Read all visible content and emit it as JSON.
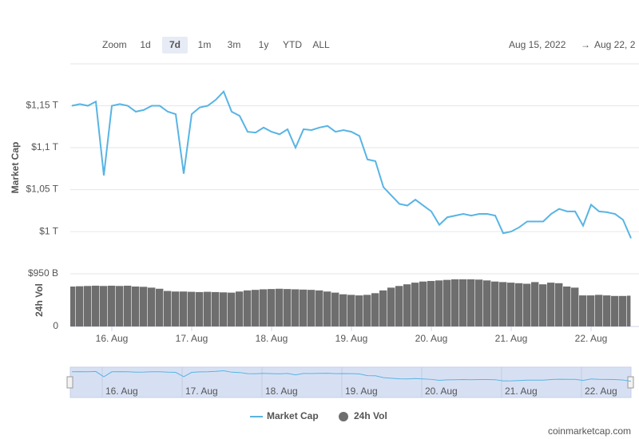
{
  "range_selector": {
    "label": "Zoom",
    "buttons": [
      "1d",
      "7d",
      "1m",
      "3m",
      "1y",
      "YTD",
      "ALL"
    ],
    "selected": 1,
    "from": "Aug 15, 2022",
    "arrow": "→",
    "to": "Aug 22, 2"
  },
  "credit": "coinmarketcap.com",
  "chart_data": {
    "type": "line",
    "ylabel": "Market Cap",
    "y2label": "24h Vol",
    "x": [
      15.5,
      15.6,
      15.7,
      15.8,
      15.9,
      16.0,
      16.1,
      16.2,
      16.3,
      16.4,
      16.5,
      16.6,
      16.7,
      16.8,
      16.9,
      17.0,
      17.1,
      17.2,
      17.3,
      17.4,
      17.5,
      17.6,
      17.7,
      17.8,
      17.9,
      18.0,
      18.1,
      18.2,
      18.3,
      18.4,
      18.5,
      18.6,
      18.7,
      18.8,
      18.9,
      19.0,
      19.1,
      19.2,
      19.3,
      19.4,
      19.5,
      19.6,
      19.7,
      19.8,
      19.9,
      20.0,
      20.1,
      20.2,
      20.3,
      20.4,
      20.5,
      20.6,
      20.7,
      20.8,
      20.9,
      21.0,
      21.1,
      21.2,
      21.3,
      21.4,
      21.5,
      21.6,
      21.7,
      21.8,
      21.9,
      22.0,
      22.1,
      22.2,
      22.3,
      22.4,
      22.5
    ],
    "xlim": [
      15.48,
      22.5
    ],
    "xticks": [
      {
        "value": 16,
        "label": "16. Aug"
      },
      {
        "value": 17,
        "label": "17. Aug"
      },
      {
        "value": 18,
        "label": "18. Aug"
      },
      {
        "value": 19,
        "label": "19. Aug"
      },
      {
        "value": 20,
        "label": "20. Aug"
      },
      {
        "value": 21,
        "label": "21. Aug"
      },
      {
        "value": 22,
        "label": "22. Aug"
      }
    ],
    "ylim": [
      0.962,
      1.2
    ],
    "yticks": [
      {
        "value": 1.0,
        "label": "$1 T"
      },
      {
        "value": 1.05,
        "label": "$1,05 T"
      },
      {
        "value": 1.1,
        "label": "$1,1 T"
      },
      {
        "value": 1.15,
        "label": "$1,15 T"
      }
    ],
    "y2lim": [
      0,
      950
    ],
    "y2ticks": [
      0,
      {
        "value": 950,
        "label": "$950 B"
      }
    ],
    "grid": true,
    "legend": "bottom",
    "series": [
      {
        "name": "Market Cap",
        "color": "#58b4e4",
        "values": [
          1.15,
          1.152,
          1.15,
          1.155,
          1.067,
          1.15,
          1.152,
          1.15,
          1.143,
          1.145,
          1.15,
          1.15,
          1.143,
          1.14,
          1.069,
          1.14,
          1.148,
          1.15,
          1.157,
          1.167,
          1.143,
          1.138,
          1.119,
          1.118,
          1.124,
          1.119,
          1.116,
          1.122,
          1.1,
          1.122,
          1.121,
          1.124,
          1.126,
          1.119,
          1.121,
          1.119,
          1.114,
          1.086,
          1.084,
          1.053,
          1.043,
          1.033,
          1.031,
          1.038,
          1.031,
          1.024,
          1.008,
          1.017,
          1.019,
          1.021,
          1.019,
          1.021,
          1.021,
          1.019,
          0.998,
          1.0,
          1.005,
          1.012,
          1.012,
          1.012,
          1.021,
          1.027,
          1.024,
          1.024,
          1.007,
          1.032,
          1.024,
          1.023,
          1.021,
          1.014,
          0.992
        ]
      },
      {
        "name": "24h Vol",
        "color": "#6e6e6e",
        "axis": "y2",
        "values": [
          720,
          725,
          730,
          735,
          730,
          735,
          730,
          735,
          720,
          715,
          700,
          680,
          640,
          630,
          630,
          625,
          620,
          625,
          620,
          615,
          610,
          630,
          650,
          660,
          670,
          675,
          680,
          675,
          670,
          665,
          660,
          650,
          630,
          610,
          580,
          570,
          560,
          570,
          600,
          650,
          700,
          730,
          760,
          790,
          810,
          820,
          830,
          840,
          850,
          850,
          850,
          845,
          830,
          810,
          800,
          790,
          780,
          770,
          800,
          760,
          790,
          780,
          720,
          700,
          560,
          560,
          570,
          560,
          550,
          550,
          555
        ]
      }
    ]
  }
}
